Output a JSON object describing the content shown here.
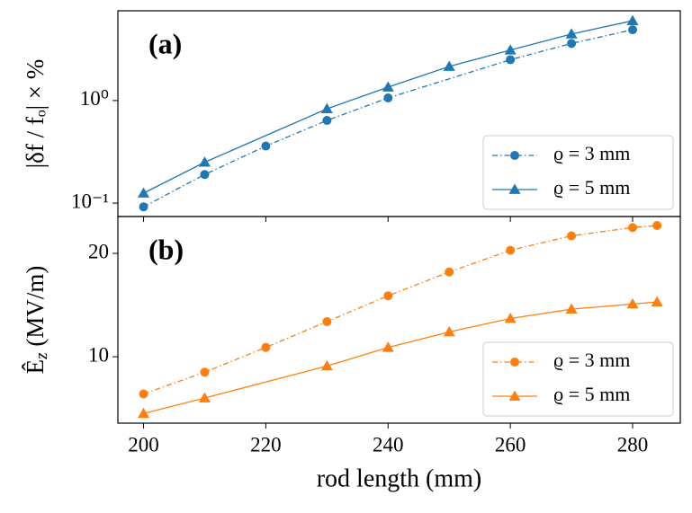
{
  "chart_data": [
    {
      "type": "line",
      "annotation": "(a)",
      "ylabel": "|δf / fₒ| × %",
      "log_y": true,
      "xlim": [
        195.8,
        287.8
      ],
      "xticks": [
        200,
        220,
        240,
        260,
        280
      ],
      "ylim": [
        0.074,
        7.5
      ],
      "yticks": [
        {
          "value": 0.1,
          "label": "10⁻¹"
        },
        {
          "value": 1,
          "label": "10⁰"
        }
      ],
      "legend": "lower right",
      "series": [
        {
          "name": "ϱ = 3 mm",
          "color": "#1f77b4",
          "linestyle": "dashdot",
          "marker": "circle",
          "x": [
            200,
            210,
            220,
            230,
            240,
            260,
            270,
            280
          ],
          "values": [
            0.092,
            0.19,
            0.36,
            0.64,
            1.06,
            2.5,
            3.6,
            4.9
          ]
        },
        {
          "name": "ϱ = 5 mm",
          "color": "#1f77b4",
          "linestyle": "solid",
          "marker": "triangle",
          "x": [
            200,
            210,
            230,
            240,
            250,
            260,
            270,
            280
          ],
          "values": [
            0.125,
            0.25,
            0.83,
            1.35,
            2.15,
            3.1,
            4.45,
            6.0
          ]
        }
      ]
    },
    {
      "type": "line",
      "annotation": "(b)",
      "ylabel": "Ê_z (MV/m)",
      "xlabel": "rod length (mm)",
      "log_y": false,
      "xlim": [
        195.8,
        287.8
      ],
      "xticks": [
        200,
        220,
        240,
        260,
        280
      ],
      "ylim": [
        3.57,
        23.57
      ],
      "yticks": [
        10,
        20
      ],
      "legend": "lower right",
      "series": [
        {
          "name": "ϱ = 3 mm",
          "color": "#ff7f0e",
          "linestyle": "dashdot",
          "marker": "circle",
          "x": [
            200,
            210,
            220,
            230,
            240,
            250,
            260,
            270,
            280,
            284
          ],
          "values": [
            6.4,
            8.5,
            10.9,
            13.4,
            15.9,
            18.2,
            20.3,
            21.7,
            22.5,
            22.7
          ]
        },
        {
          "name": "ϱ = 5 mm",
          "color": "#ff7f0e",
          "linestyle": "solid",
          "marker": "triangle",
          "x": [
            200,
            210,
            230,
            240,
            250,
            260,
            270,
            280,
            284
          ],
          "values": [
            4.5,
            6.0,
            9.1,
            10.9,
            12.4,
            13.7,
            14.6,
            15.1,
            15.3
          ]
        }
      ]
    }
  ]
}
